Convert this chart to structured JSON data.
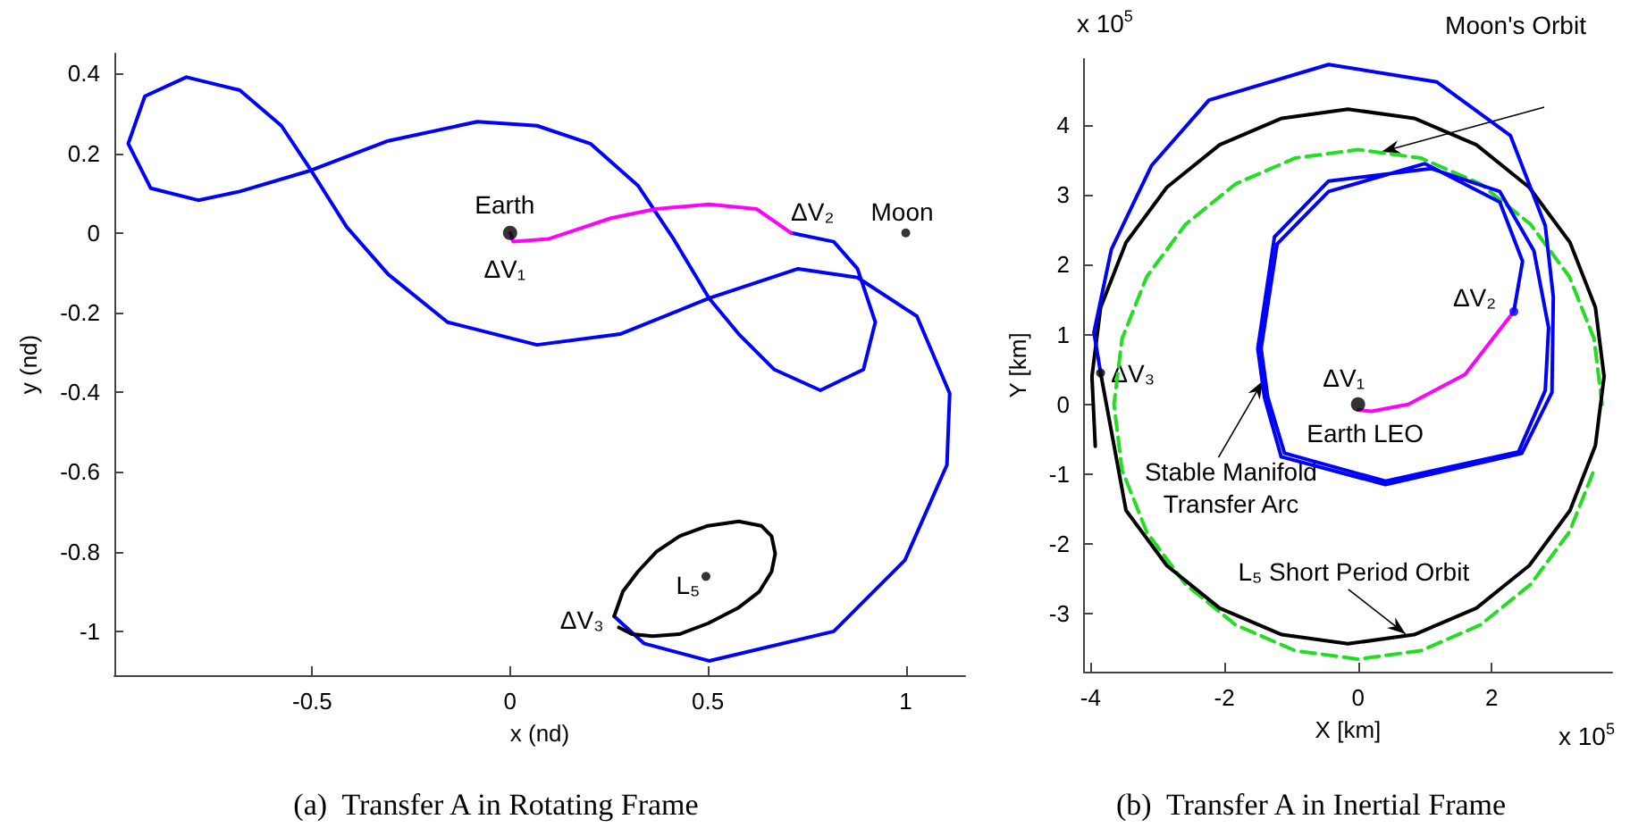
{
  "chart_data": [
    {
      "type": "line",
      "title": "(a)  Transfer A in Rotating Frame",
      "xlabel": "x (nd)",
      "ylabel": "y (nd)",
      "xlim": [
        -1,
        1.15
      ],
      "ylim": [
        -1.11,
        0.45
      ],
      "xticks": [
        -0.5,
        0,
        0.5,
        1
      ],
      "yticks": [
        -1,
        -0.8,
        -0.6,
        -0.4,
        -0.2,
        0,
        0.2,
        0.4
      ],
      "grid": false,
      "series": [
        {
          "color": "#0000ff",
          "x": [
            0.71,
            0.818,
            0.878,
            0.923,
            0.893,
            0.784,
            0.668,
            0.578,
            0.503,
            0.413,
            0.323,
            0.203,
            0.068,
            -0.083,
            -0.308,
            -0.503,
            -0.683,
            -0.788,
            -0.908,
            -0.965,
            -0.923,
            -0.818,
            -0.683,
            -0.578,
            -0.503,
            -0.413,
            -0.308,
            -0.158,
            0.068,
            0.278,
            0.503,
            0.728,
            0.878,
            1.028,
            1.111,
            1.104,
            0.998,
            0.818,
            0.503,
            0.338,
            0.263
          ],
          "values": [
            0,
            -0.022,
            -0.09,
            -0.224,
            -0.343,
            -0.395,
            -0.343,
            -0.254,
            -0.164,
            -0.015,
            0.119,
            0.224,
            0.269,
            0.279,
            0.231,
            0.157,
            0.104,
            0.082,
            0.112,
            0.224,
            0.343,
            0.391,
            0.358,
            0.269,
            0.157,
            0.015,
            -0.104,
            -0.224,
            -0.281,
            -0.254,
            -0.164,
            -0.09,
            -0.112,
            -0.209,
            -0.403,
            -0.582,
            -0.821,
            -1.0,
            -1.074,
            -1.03,
            -0.962
          ]
        },
        {
          "color": "#ff00ff",
          "x": [
            0,
            0.008,
            0.098,
            0.255,
            0.368,
            0.503,
            0.623,
            0.71
          ],
          "values": [
            0,
            -0.022,
            -0.015,
            0.037,
            0.06,
            0.072,
            0.06,
            0
          ]
        },
        {
          "color": "#000000",
          "x": [
            0.263,
            0.285,
            0.323,
            0.37,
            0.428,
            0.5,
            0.578,
            0.635,
            0.661,
            0.67,
            0.661,
            0.63,
            0.578,
            0.5,
            0.428,
            0.36,
            0.308,
            0.275
          ],
          "values": [
            -0.962,
            -0.9,
            -0.85,
            -0.8,
            -0.761,
            -0.735,
            -0.724,
            -0.735,
            -0.761,
            -0.805,
            -0.85,
            -0.9,
            -0.94,
            -0.98,
            -1.007,
            -1.012,
            -1.007,
            -0.99
          ]
        },
        {
          "type": "scatter",
          "marker": "circle",
          "color": "#000000",
          "x": [
            0
          ],
          "values": [
            0
          ]
        },
        {
          "type": "scatter",
          "marker": "circle",
          "color": "#000000",
          "x": [
            1,
            0.495
          ],
          "values": [
            0,
            -0.862
          ]
        }
      ],
      "annotations": [
        {
          "text": "Earth",
          "x": 0,
          "y": 0
        },
        {
          "text": "ΔV₁",
          "x": 0,
          "y": 0
        },
        {
          "text": "ΔV₂",
          "x": 0.71,
          "y": 0
        },
        {
          "text": "Moon",
          "x": 1,
          "y": 0
        },
        {
          "text": "L₅",
          "x": 0.495,
          "y": -0.862
        },
        {
          "text": "ΔV₃",
          "x": 0.263,
          "y": -0.962
        }
      ]
    },
    {
      "type": "line",
      "title": "(b)  Transfer A in Inertial Frame",
      "xlabel": "X [km]",
      "ylabel": "Y [km]",
      "xlim": [
        -4.1,
        3.8
      ],
      "ylim": [
        -3.83,
        4.95
      ],
      "xticks": [
        -4,
        -2,
        0,
        2
      ],
      "yticks": [
        -3,
        -2,
        -1,
        0,
        1,
        2,
        3,
        4
      ],
      "grid": false,
      "series": [
        {
          "color": "#22dd22",
          "line_style": "dashed",
          "x": [
            3.65,
            3.53,
            3.16,
            2.58,
            1.83,
            0.94,
            0,
            -0.94,
            -1.83,
            -2.58,
            -3.16,
            -3.53,
            -3.65,
            -3.53,
            -3.16,
            -2.58,
            -1.83,
            -0.94,
            0,
            0.94,
            1.83,
            2.58,
            3.16,
            3.53
          ],
          "values": [
            0,
            0.94,
            1.83,
            2.58,
            3.16,
            3.53,
            3.65,
            3.53,
            3.16,
            2.58,
            1.83,
            0.94,
            0,
            -0.94,
            -1.83,
            -2.58,
            -3.16,
            -3.53,
            -3.65,
            -3.53,
            -3.16,
            -2.58,
            -1.83,
            -0.94
          ]
        },
        {
          "color": "#000000",
          "x": [
            -3.85,
            -3.47,
            -2.86,
            -2.07,
            -1.14,
            -0.15,
            0.84,
            1.77,
            2.56,
            3.17,
            3.55,
            3.68,
            3.55,
            3.17,
            2.56,
            1.77,
            0.84,
            -0.15,
            -1.14,
            -2.07,
            -2.86,
            -3.47,
            -3.85,
            -3.98,
            -3.93
          ],
          "values": [
            0.45,
            -1.52,
            -2.31,
            -2.92,
            -3.3,
            -3.43,
            -3.3,
            -2.92,
            -2.31,
            -1.52,
            -0.59,
            0.4,
            1.39,
            2.32,
            3.11,
            3.72,
            4.1,
            4.23,
            4.1,
            3.72,
            3.11,
            2.32,
            1.39,
            0.4,
            -0.6
          ]
        },
        {
          "color": "#0000ff",
          "x": [
            2.33,
            2.46,
            2.12,
            1.0,
            -0.44,
            -1.21,
            -1.45,
            -1.35,
            -1.1,
            0.41,
            2.4,
            2.8,
            2.85,
            2.63,
            2.12,
            1.09,
            -0.44,
            -1.25,
            -1.5,
            -1.4,
            -1.15,
            0.41,
            2.45,
            2.9,
            2.92,
            2.8,
            2.28,
            1.18,
            -0.44,
            -2.23,
            -3.09,
            -3.69,
            -3.95,
            -3.85
          ],
          "values": [
            1.33,
            2.05,
            2.9,
            3.45,
            3.05,
            2.3,
            0.8,
            0.1,
            -0.7,
            -1.1,
            -0.68,
            0.2,
            1.1,
            2.2,
            3.05,
            3.38,
            3.2,
            2.4,
            0.8,
            0.1,
            -0.75,
            -1.15,
            -0.7,
            0.17,
            1.54,
            2.56,
            3.85,
            4.62,
            4.87,
            4.36,
            3.42,
            2.22,
            1.03,
            0.45
          ]
        },
        {
          "color": "#ff00ff",
          "x": [
            0,
            0.2,
            0.75,
            1.6,
            2.33
          ],
          "values": [
            -0.08,
            -0.1,
            0,
            0.43,
            1.33
          ]
        },
        {
          "type": "scatter",
          "marker": "circle",
          "color": "#000000",
          "x": [
            0
          ],
          "values": [
            0
          ]
        },
        {
          "type": "scatter",
          "marker": "circle",
          "colors": [
            "#0000ff",
            "#000000"
          ],
          "x": [
            2.33,
            -3.85
          ],
          "values": [
            1.33,
            0.45
          ]
        }
      ],
      "annotations": [
        "x 10$^{5}$",
        "x 10$^{5}$",
        "Moon's Orbit",
        {
          "text": "Stable Manifold\nTransfer Arc",
          "x": -1.42,
          "y": 0.34
        },
        {
          "text": "L₅ Short Period Orbit",
          "x": 0.71,
          "y": -3.29
        },
        {
          "text": "ΔV₁",
          "x": 0,
          "y": 0
        },
        {
          "text": "Earth LEO",
          "x": 0,
          "y": 0
        },
        {
          "text": "ΔV₂",
          "x": 2.33,
          "y": 1.33
        },
        {
          "text": "ΔV₃",
          "x": -3.85,
          "y": 0.45
        }
      ]
    }
  ]
}
